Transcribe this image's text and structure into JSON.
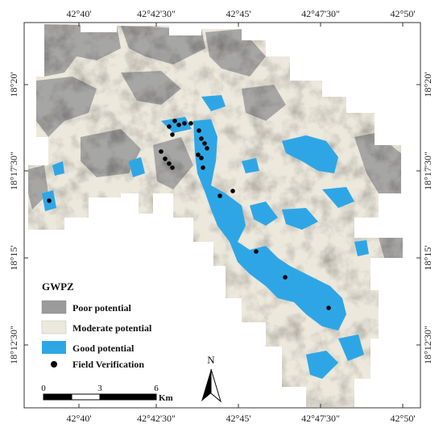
{
  "map": {
    "top_ticks": [
      "42°40'",
      "42°42'30\"",
      "42°45'",
      "42°47'30\"",
      "42°50'"
    ],
    "bottom_ticks": [
      "42°40'",
      "42°42'30\"",
      "42°45'",
      "42°47'30\"",
      "42°50'"
    ],
    "left_ticks": [
      "18°20'",
      "18°17'30\"",
      "18°15'",
      "18°12'30\""
    ],
    "right_ticks": [
      "18°20'",
      "18°17'30\"",
      "18°15'",
      "18°12'30\""
    ]
  },
  "legend": {
    "title": "GWPZ",
    "items": [
      {
        "label": "Poor potential",
        "color": "#9b9b9b"
      },
      {
        "label": "Moderate potential",
        "color": "#ece8dc"
      },
      {
        "label": "Good potential",
        "color": "#2ea6e6"
      }
    ],
    "point_label": "Field Verification"
  },
  "scale_bar": {
    "labels": [
      "0",
      "3",
      "6"
    ],
    "unit": "Km"
  },
  "north_arrow": {
    "label": "N"
  },
  "colors": {
    "poor": "#9b9b9b",
    "moderate": "#ece8dc",
    "good": "#2ea6e6",
    "frame": "#333333"
  }
}
